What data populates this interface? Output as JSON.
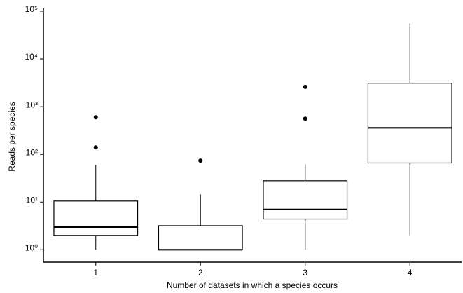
{
  "chart_data": {
    "type": "box",
    "x_label": "Number of datasets in which a species occurs",
    "y_label": "Reads per species",
    "categories": [
      "1",
      "2",
      "3",
      "4"
    ],
    "boxes": [
      {
        "low": 1,
        "q1": 2.0,
        "median": 3.0,
        "q3": 10.5,
        "high": 60,
        "outliers": [
          600,
          140
        ]
      },
      {
        "low": 1,
        "q1": 1,
        "median": 1,
        "q3": 3.2,
        "high": 14.5,
        "outliers": [
          74
        ]
      },
      {
        "low": 1,
        "q1": 4.4,
        "median": 7,
        "q3": 28,
        "high": 62,
        "outliers": [
          2600,
          560
        ]
      },
      {
        "low": 2.0,
        "q1": 66,
        "median": 360,
        "q3": 3100,
        "high": 55000,
        "outliers": []
      }
    ],
    "color": "#000000",
    "log_y": true,
    "ylim": [
      0.55,
      100000
    ],
    "yticks": [
      {
        "value": 1,
        "label": "10⁰"
      },
      {
        "value": 10,
        "label": "10¹"
      },
      {
        "value": 100,
        "label": "10²"
      },
      {
        "value": 1000,
        "label": "10³"
      },
      {
        "value": 10000,
        "label": "10⁴"
      },
      {
        "value": 100000,
        "label": "10⁵"
      }
    ],
    "grid": false
  }
}
